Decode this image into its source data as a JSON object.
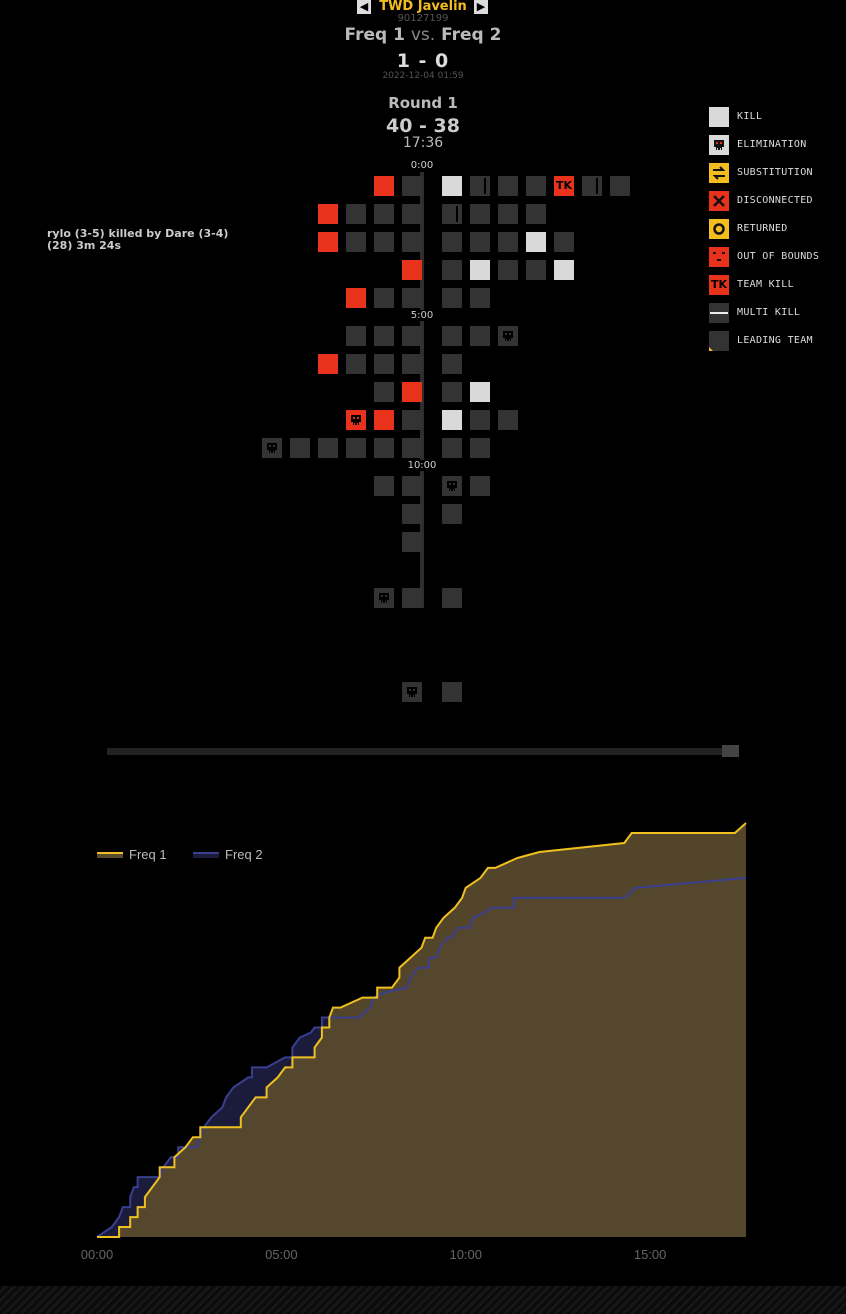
{
  "header": {
    "league": "TWD Javelin",
    "match_id": "90127199",
    "team1": "Freq 1",
    "vs": "vs.",
    "team2": "Freq 2",
    "score": "1 - 0",
    "date": "2022-12-04 01:59"
  },
  "round": {
    "title": "Round 1",
    "score": "40 - 38",
    "duration": "17:36"
  },
  "timeline": {
    "marks": [
      "0:00",
      "5:00",
      "10:00"
    ],
    "event_note_line1": "rylo (3-5) killed by Dare (3-4)",
    "event_note_line2": "(28) 3m 24s",
    "tk_label": "TK"
  },
  "legend": [
    {
      "label": "KILL",
      "icon": "kill-icon"
    },
    {
      "label": "ELIMINATION",
      "icon": "elimination-icon"
    },
    {
      "label": "SUBSTITUTION",
      "icon": "substitution-icon"
    },
    {
      "label": "DISCONNECTED",
      "icon": "disconnected-icon"
    },
    {
      "label": "RETURNED",
      "icon": "returned-icon"
    },
    {
      "label": "OUT OF BOUNDS",
      "icon": "out-of-bounds-icon"
    },
    {
      "label": "TEAM KILL",
      "icon": "team-kill-icon",
      "badge": "TK"
    },
    {
      "label": "MULTI KILL",
      "icon": "multi-kill-icon"
    },
    {
      "label": "LEADING TEAM",
      "icon": "leading-team-icon"
    }
  ],
  "colors": {
    "accent": "#f4bd1f",
    "freq1": "#f0c020",
    "freq2": "#3a3f8f",
    "red": "#e8321c",
    "kill": "#d9d9d9"
  },
  "chart_data": {
    "type": "area",
    "xlabel": "",
    "ylabel": "",
    "x_ticks": [
      "00:00",
      "05:00",
      "10:00",
      "15:00"
    ],
    "xlim_minutes": [
      0,
      17.6
    ],
    "ylim": [
      0,
      40
    ],
    "legend_position": "top-left",
    "series": [
      {
        "name": "Freq 1",
        "color": "#f0c020",
        "points": [
          [
            0,
            0
          ],
          [
            0.6,
            0
          ],
          [
            0.6,
            1
          ],
          [
            0.9,
            1
          ],
          [
            0.9,
            2
          ],
          [
            1.1,
            2
          ],
          [
            1.1,
            3
          ],
          [
            1.3,
            3
          ],
          [
            1.3,
            4
          ],
          [
            1.5,
            5
          ],
          [
            1.7,
            6
          ],
          [
            1.7,
            7
          ],
          [
            2.1,
            7
          ],
          [
            2.1,
            8
          ],
          [
            2.4,
            9
          ],
          [
            2.6,
            10
          ],
          [
            2.8,
            10
          ],
          [
            2.8,
            11
          ],
          [
            3.9,
            11
          ],
          [
            3.9,
            12
          ],
          [
            4.1,
            13
          ],
          [
            4.3,
            14
          ],
          [
            4.6,
            14
          ],
          [
            4.6,
            15
          ],
          [
            4.9,
            16
          ],
          [
            5.1,
            17
          ],
          [
            5.3,
            17
          ],
          [
            5.3,
            18
          ],
          [
            5.9,
            18
          ],
          [
            5.9,
            19
          ],
          [
            6.1,
            20
          ],
          [
            6.1,
            21
          ],
          [
            6.3,
            21
          ],
          [
            6.3,
            22
          ],
          [
            6.4,
            23
          ],
          [
            6.6,
            23
          ],
          [
            7.2,
            24
          ],
          [
            7.6,
            24
          ],
          [
            7.6,
            25
          ],
          [
            8.0,
            25
          ],
          [
            8.2,
            26
          ],
          [
            8.2,
            27
          ],
          [
            8.5,
            28
          ],
          [
            8.8,
            29
          ],
          [
            8.9,
            30
          ],
          [
            9.1,
            30
          ],
          [
            9.2,
            31
          ],
          [
            9.4,
            32
          ],
          [
            9.7,
            33
          ],
          [
            9.9,
            34
          ],
          [
            10.0,
            35
          ],
          [
            10.4,
            36
          ],
          [
            10.6,
            37
          ],
          [
            10.8,
            37
          ],
          [
            11.4,
            38
          ],
          [
            12.0,
            38.6
          ],
          [
            14.3,
            39.5
          ],
          [
            14.5,
            40.5
          ],
          [
            17.3,
            40.5
          ],
          [
            17.6,
            41.5
          ]
        ]
      },
      {
        "name": "Freq 2",
        "color": "#3a3f8f",
        "points": [
          [
            0,
            0
          ],
          [
            0.4,
            1
          ],
          [
            0.6,
            2
          ],
          [
            0.7,
            3
          ],
          [
            0.9,
            3
          ],
          [
            0.9,
            4
          ],
          [
            1.0,
            5
          ],
          [
            1.1,
            5
          ],
          [
            1.1,
            6
          ],
          [
            1.7,
            6
          ],
          [
            1.8,
            7
          ],
          [
            2.0,
            8
          ],
          [
            2.2,
            8
          ],
          [
            2.2,
            9
          ],
          [
            2.7,
            9
          ],
          [
            2.8,
            10
          ],
          [
            2.9,
            11
          ],
          [
            3.1,
            12
          ],
          [
            3.4,
            13
          ],
          [
            3.5,
            14
          ],
          [
            3.7,
            15
          ],
          [
            3.9,
            15.5
          ],
          [
            4.1,
            16
          ],
          [
            4.2,
            16
          ],
          [
            4.2,
            17
          ],
          [
            4.6,
            17
          ],
          [
            5.1,
            18
          ],
          [
            5.3,
            18
          ],
          [
            5.3,
            19
          ],
          [
            5.5,
            20
          ],
          [
            5.8,
            20.5
          ],
          [
            5.9,
            21
          ],
          [
            6.1,
            21
          ],
          [
            6.1,
            22
          ],
          [
            7.1,
            22
          ],
          [
            7.4,
            23
          ],
          [
            7.5,
            24
          ],
          [
            7.8,
            24.5
          ],
          [
            8.4,
            25
          ],
          [
            8.5,
            26
          ],
          [
            8.7,
            27
          ],
          [
            9.0,
            27
          ],
          [
            9.0,
            28
          ],
          [
            9.2,
            28
          ],
          [
            9.3,
            29
          ],
          [
            9.5,
            30
          ],
          [
            9.6,
            30
          ],
          [
            9.8,
            31
          ],
          [
            10.1,
            31
          ],
          [
            10.2,
            32
          ],
          [
            10.5,
            32.5
          ],
          [
            10.7,
            33
          ],
          [
            11.3,
            33
          ],
          [
            11.3,
            34
          ],
          [
            11.8,
            34
          ],
          [
            14.3,
            34
          ],
          [
            14.6,
            35
          ],
          [
            17.6,
            36
          ]
        ]
      }
    ]
  }
}
